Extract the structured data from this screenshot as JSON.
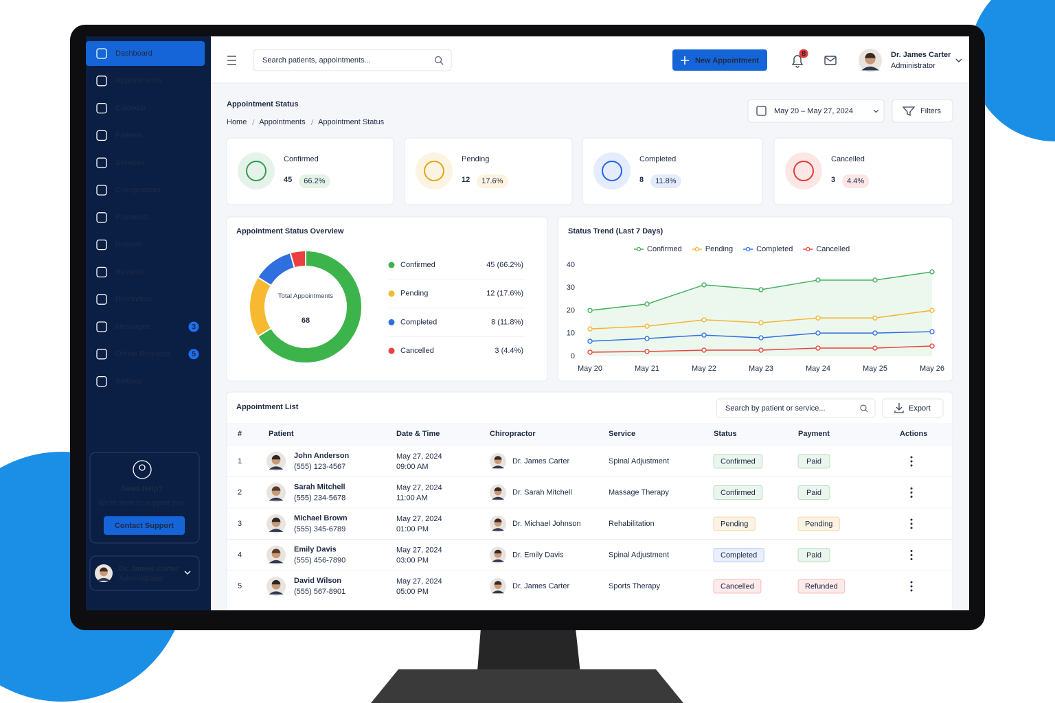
{
  "sidebar": {
    "menu": [
      {
        "label": "Dashboard"
      },
      {
        "label": "Appointments"
      },
      {
        "label": "Calendar"
      },
      {
        "label": "Patients"
      },
      {
        "label": "Services"
      },
      {
        "label": "Chiropractors"
      },
      {
        "label": "Payments"
      },
      {
        "label": "Reports"
      },
      {
        "label": "Reviews"
      },
      {
        "label": "Reminders"
      },
      {
        "label": "Messages",
        "badge": 3
      },
      {
        "label": "Online Requests",
        "badge": 5
      },
      {
        "label": "Settings"
      }
    ],
    "help": {
      "title": "Need Help?",
      "text": "We're here to support you.",
      "button": "Contact Support"
    },
    "user": {
      "name": "Dr. James Carter",
      "role": "Administrator"
    }
  },
  "header": {
    "search": "Search patients, appointments...",
    "button": "New Appointment",
    "notifications": 8,
    "user": {
      "name": "Dr. James Carter",
      "role": "Administrator"
    }
  },
  "page": {
    "title": "Appointment Status",
    "breadcrumb": [
      "Home",
      "Appointments",
      "Appointment Status"
    ],
    "date_range": "May 20 – May 27, 2024",
    "filters": "Filters"
  },
  "stats": [
    {
      "label": "Confirmed",
      "value": 45,
      "percent": "66.2%",
      "color": "#2e9e4f"
    },
    {
      "label": "Pending",
      "value": 12,
      "percent": "17.6%",
      "color": "#e8a317"
    },
    {
      "label": "Completed",
      "value": 8,
      "percent": "11.8%",
      "color": "#2563eb"
    },
    {
      "label": "Cancelled",
      "value": 3,
      "percent": "4.4%",
      "color": "#e53935"
    }
  ],
  "chart_data": [
    {
      "type": "donut",
      "title": "Appointment Status Overview",
      "center_label": "Total Appointments",
      "total": 68,
      "categories": [
        "Confirmed",
        "Pending",
        "Completed",
        "Cancelled"
      ],
      "values": [
        45,
        12,
        8,
        3
      ],
      "value_labels": [
        "45 (66.2%)",
        "12 (17.6%)",
        "8 (11.8%)",
        "3 (4.4%)"
      ],
      "colors": [
        "#3cb44b",
        "#f6b930",
        "#2f6fe0",
        "#ec4040"
      ]
    },
    {
      "type": "line",
      "title": "Status Trend (Last 7 Days)",
      "categories": [
        "May 20",
        "May 21",
        "May 22",
        "May 23",
        "May 24",
        "May 25",
        "May 26"
      ],
      "series": [
        {
          "name": "Confirmed",
          "color": "#43b05c",
          "area": true,
          "values": [
            20.1,
            22.9,
            31.3,
            29.2,
            33.4,
            33.4,
            37
          ]
        },
        {
          "name": "Pending",
          "color": "#f3b533",
          "values": [
            12,
            13.2,
            16,
            14.7,
            16.8,
            16.8,
            20.1
          ]
        },
        {
          "name": "Completed",
          "color": "#2f6fe0",
          "values": [
            6.6,
            7.8,
            9.3,
            8.1,
            10.2,
            10.2,
            10.8
          ]
        },
        {
          "name": "Cancelled",
          "color": "#e8453c",
          "values": [
            1.8,
            2.1,
            2.7,
            2.7,
            3.6,
            3.6,
            4.5
          ]
        }
      ],
      "ylim": [
        0,
        40
      ],
      "yticks": [
        0,
        10,
        20,
        30,
        40
      ],
      "grid": false,
      "legend": "top"
    }
  ],
  "table": {
    "title": "Appointment List",
    "search": "Search by patient or service...",
    "export": "Export",
    "columns": [
      "#",
      "Patient",
      "Date & Time",
      "Chiropractor",
      "Service",
      "Status",
      "Payment",
      "Actions"
    ],
    "rows": [
      {
        "index": 1,
        "patient": "John Anderson",
        "phone": "(555) 123-4567",
        "date": "May 27, 2024",
        "time": "09:00 AM",
        "chiropractor": "Dr. James Carter",
        "service": "Spinal Adjustment",
        "status": "Confirmed",
        "status_color": "#2e9e4f",
        "payment": "Paid",
        "payment_color": "#2e9e4f"
      },
      {
        "index": 2,
        "patient": "Sarah Mitchell",
        "phone": "(555) 234-5678",
        "date": "May 27, 2024",
        "time": "11:00 AM",
        "chiropractor": "Dr. Sarah Mitchell",
        "service": "Massage Therapy",
        "status": "Confirmed",
        "status_color": "#2e9e4f",
        "payment": "Paid",
        "payment_color": "#2e9e4f"
      },
      {
        "index": 3,
        "patient": "Michael Brown",
        "phone": "(555) 345-6789",
        "date": "May 27, 2024",
        "time": "01:00 PM",
        "chiropractor": "Dr. Michael Johnson",
        "service": "Rehabilitation",
        "status": "Pending",
        "status_color": "#e08a00",
        "payment": "Pending",
        "payment_color": "#e08a00"
      },
      {
        "index": 4,
        "patient": "Emily Davis",
        "phone": "(555) 456-7890",
        "date": "May 27, 2024",
        "time": "03:00 PM",
        "chiropractor": "Dr. Emily Davis",
        "service": "Spinal Adjustment",
        "status": "Completed",
        "status_color": "#2563eb",
        "payment": "Paid",
        "payment_color": "#2e9e4f"
      },
      {
        "index": 5,
        "patient": "David Wilson",
        "phone": "(555) 567-8901",
        "date": "May 27, 2024",
        "time": "05:00 PM",
        "chiropractor": "Dr. James Carter",
        "service": "Sports Therapy",
        "status": "Cancelled",
        "status_color": "#e53935",
        "payment": "Refunded",
        "payment_color": "#e53935"
      }
    ]
  }
}
